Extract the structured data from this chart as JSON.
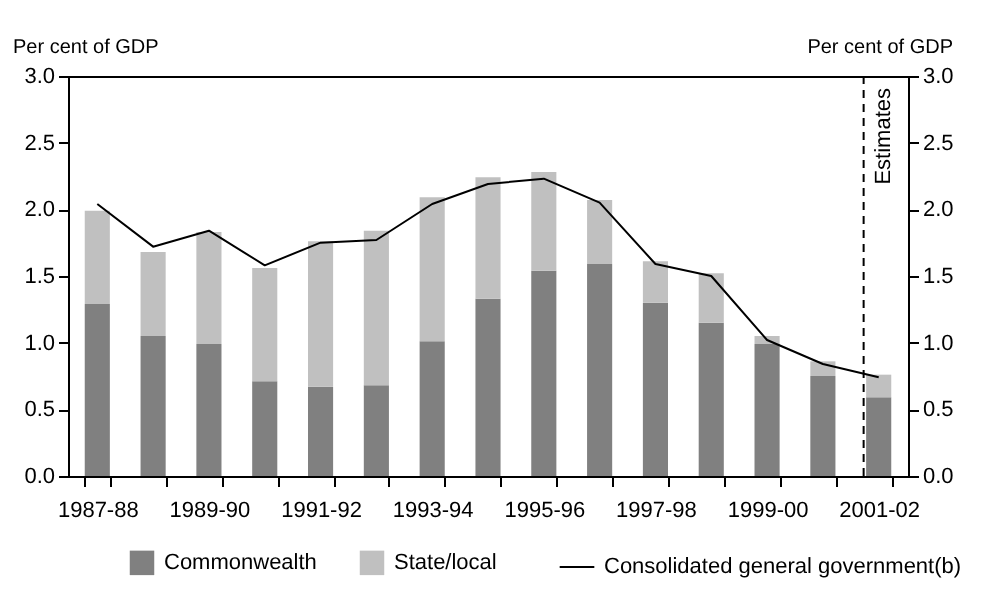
{
  "chart_data": {
    "type": "bar",
    "stacked": true,
    "ylabel": "Per cent of GDP",
    "y2label": "Per cent of GDP",
    "categories": [
      "1987-88",
      null,
      "1989-90",
      null,
      "1991-92",
      null,
      "1993-94",
      null,
      "1995-96",
      null,
      "1997-98",
      null,
      "1999-00",
      null,
      "2001-02"
    ],
    "series": [
      {
        "name": "Commonwealth",
        "color": "#808080",
        "values": [
          1.29,
          1.05,
          0.99,
          0.71,
          0.67,
          0.68,
          1.01,
          1.33,
          1.54,
          1.59,
          1.3,
          1.15,
          0.99,
          0.75,
          0.59
        ]
      },
      {
        "name": "State/local",
        "color": "#c0c0c0",
        "values": [
          0.7,
          0.63,
          0.84,
          0.85,
          1.09,
          1.16,
          1.08,
          0.91,
          0.74,
          0.48,
          0.31,
          0.37,
          0.06,
          0.11,
          0.17
        ]
      },
      {
        "name": "Consolidated general government(b)",
        "type": "line",
        "color": "#000000",
        "values": [
          2.04,
          1.72,
          1.84,
          1.58,
          1.75,
          1.77,
          2.04,
          2.19,
          2.23,
          2.05,
          1.59,
          1.5,
          1.02,
          0.84,
          0.74
        ]
      }
    ],
    "ylim": [
      0,
      3
    ],
    "yticks": [
      {
        "value": 0,
        "label": "0.0"
      },
      0.5,
      {
        "value": 1,
        "label": "1.0"
      },
      1.5,
      {
        "value": 2,
        "label": "2.0"
      },
      2.5,
      {
        "value": 3,
        "label": "3.0"
      }
    ],
    "y2lim": [
      0,
      3
    ],
    "y2ticks": [
      {
        "value": 0,
        "label": "0.0"
      },
      0.5,
      {
        "value": 1,
        "label": "1.0"
      },
      1.5,
      {
        "value": 2,
        "label": "2.0"
      },
      2.5,
      {
        "value": 3,
        "label": "3.0"
      }
    ],
    "ref_lines": [
      {
        "axis": "x",
        "value": "2001-02",
        "label": "Estimates",
        "line_style": "dashed",
        "color": "#000000"
      }
    ],
    "grid": false,
    "legend": "bottom"
  }
}
